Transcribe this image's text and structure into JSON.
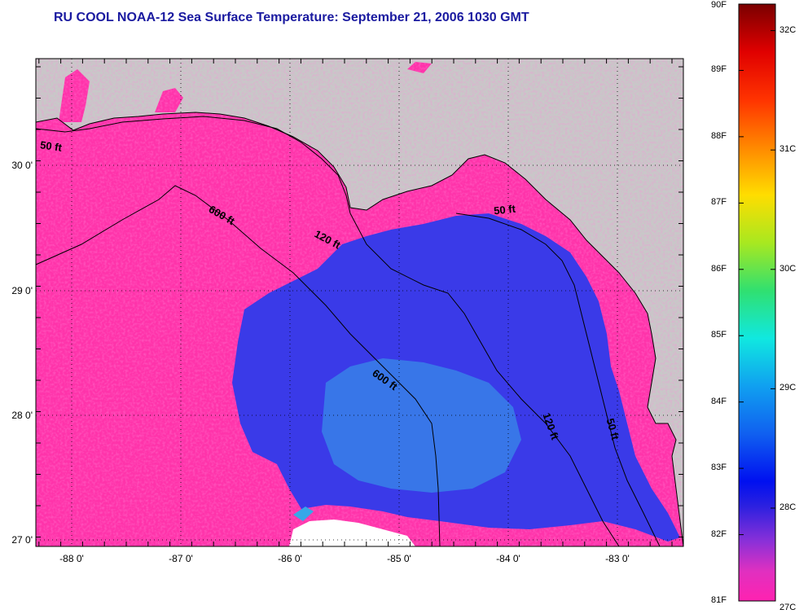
{
  "title": "RU COOL  NOAA-12  Sea Surface Temperature:  September 21, 2006 1030 GMT",
  "map": {
    "lon_ticks": [
      "-88 0'",
      "-87 0'",
      "-86 0'",
      "-85 0'",
      "-84 0'",
      "-83 0'"
    ],
    "lat_ticks": [
      "30 0'",
      "29 0'",
      "28 0'",
      "27 0'"
    ],
    "contour_labels": [
      {
        "id": "label-50ft-west",
        "text": "50 ft"
      },
      {
        "id": "label-600ft-north",
        "text": "600 ft"
      },
      {
        "id": "label-120ft-north",
        "text": "120 ft"
      },
      {
        "id": "label-50ft-northeast",
        "text": "50 ft"
      },
      {
        "id": "label-600ft-south",
        "text": "600 ft"
      },
      {
        "id": "label-120ft-south",
        "text": "120 ft"
      },
      {
        "id": "label-50ft-east",
        "text": "50 ft"
      }
    ],
    "colors": {
      "land": "#c8c8c8",
      "warm_water": "#ff33aa",
      "cool_water": "#3a3ae8",
      "coolest_water": "#36a8e8",
      "cloud": "#ffffff",
      "contour": "#000000"
    }
  },
  "colorbar": {
    "fahrenheit": [
      "90F",
      "89F",
      "88F",
      "87F",
      "86F",
      "85F",
      "84F",
      "83F",
      "82F",
      "81F"
    ],
    "celsius": [
      "32C",
      "31C",
      "30C",
      "29C",
      "28C",
      "27C"
    ]
  }
}
